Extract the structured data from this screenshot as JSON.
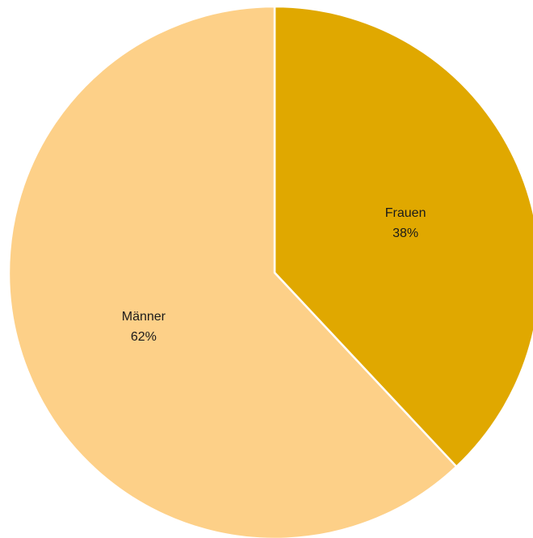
{
  "chart_data": {
    "type": "pie",
    "title": "",
    "slices": [
      {
        "label": "Frauen",
        "value": 38,
        "value_label": "38%",
        "color": "#E0A800"
      },
      {
        "label": "Männer",
        "value": 62,
        "value_label": "62%",
        "color": "#FDD088"
      }
    ],
    "start": "12 o'clock",
    "direction": "clockwise",
    "slice_border_color": "#ffffff",
    "legend": "none"
  }
}
